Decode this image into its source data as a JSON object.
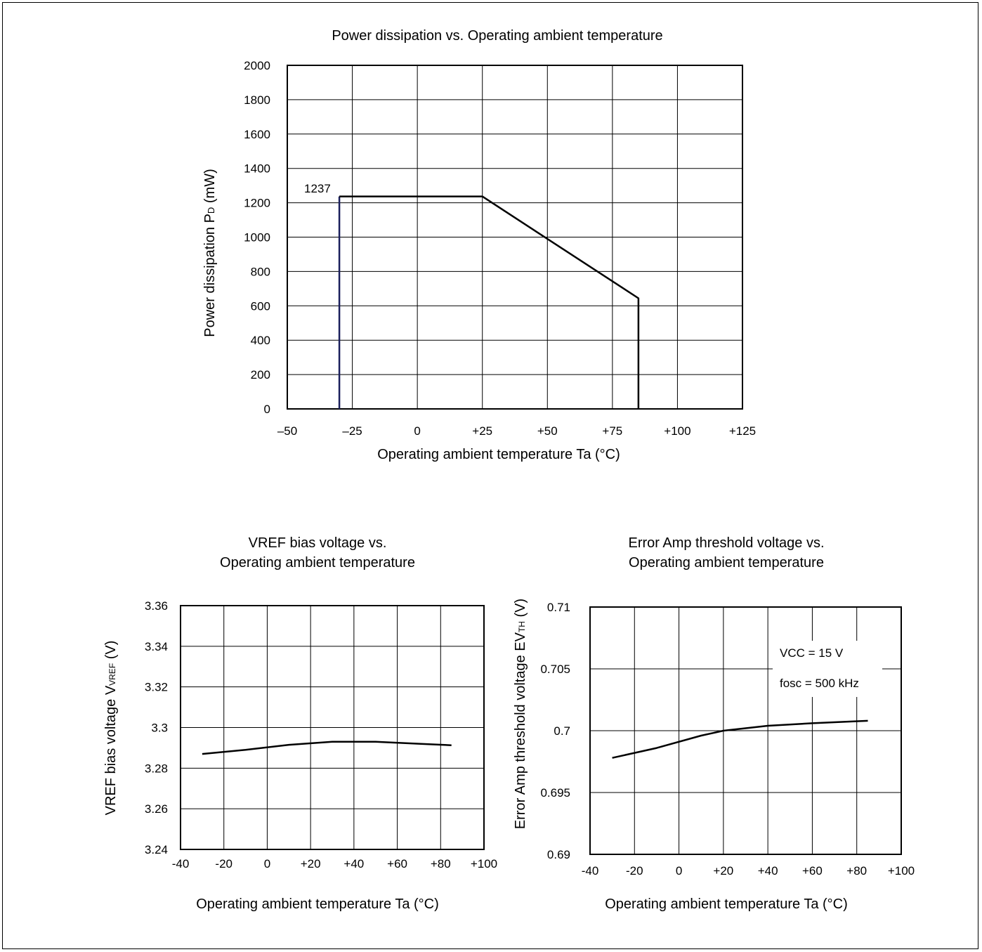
{
  "chart_data": [
    {
      "type": "line",
      "title": "Power dissipation vs. Operating ambient temperature",
      "xlabel": "Operating ambient temperature Ta (°C)",
      "ylabel_main": "Power dissipation P",
      "ylabel_sub": "D",
      "ylabel_tail": " (mW)",
      "xlim": [
        -50,
        125
      ],
      "ylim": [
        0,
        2000
      ],
      "x_ticks": [
        -50,
        -25,
        0,
        25,
        50,
        75,
        100,
        125
      ],
      "x_tick_labels": [
        "–50",
        "–25",
        "0",
        "+25",
        "+50",
        "+75",
        "+100",
        "+125"
      ],
      "y_ticks": [
        0,
        200,
        400,
        600,
        800,
        1000,
        1200,
        1400,
        1600,
        1800,
        2000
      ],
      "y_tick_labels": [
        "0",
        "200",
        "400",
        "600",
        "800",
        "1000",
        "1200",
        "1400",
        "1600",
        "1800",
        "2000"
      ],
      "grid": true,
      "annotations": [
        {
          "text": "1237"
        }
      ],
      "series": [
        {
          "x": [
            -30,
            -30
          ],
          "y": [
            0,
            1237
          ],
          "color": "#1a1f5c"
        },
        {
          "x": [
            -30,
            25,
            85,
            85
          ],
          "y": [
            1237,
            1237,
            644,
            0
          ],
          "color": "#000000"
        }
      ]
    },
    {
      "type": "line",
      "title_lines": [
        "VREF bias voltage vs.",
        "Operating ambient temperature"
      ],
      "xlabel": "Operating ambient temperature Ta (°C)",
      "ylabel_main": "VREF bias voltage V",
      "ylabel_sub": "VREF",
      "ylabel_tail": " (V)",
      "xlim": [
        -40,
        100
      ],
      "ylim": [
        3.24,
        3.36
      ],
      "x_ticks": [
        -40,
        -20,
        0,
        20,
        40,
        60,
        80,
        100
      ],
      "x_tick_labels": [
        "-40",
        "-20",
        "0",
        "+20",
        "+40",
        "+60",
        "+80",
        "+100"
      ],
      "y_ticks": [
        3.24,
        3.26,
        3.28,
        3.3,
        3.32,
        3.34,
        3.36
      ],
      "y_tick_labels": [
        "3.24",
        "3.26",
        "3.28",
        "3.3",
        "3.32",
        "3.34",
        "3.36"
      ],
      "grid": true,
      "series": [
        {
          "x": [
            -30,
            -10,
            10,
            30,
            50,
            70,
            85
          ],
          "y": [
            3.287,
            3.289,
            3.2915,
            3.293,
            3.293,
            3.292,
            3.2913
          ],
          "color": "#000000"
        }
      ]
    },
    {
      "type": "line",
      "title_lines": [
        "Error Amp threshold voltage vs.",
        "Operating ambient temperature"
      ],
      "xlabel": "Operating ambient temperature Ta (°C)",
      "ylabel_main": "Error Amp threshold voltage EV",
      "ylabel_sub": "TH",
      "ylabel_tail": " (V)",
      "xlim": [
        -40,
        100
      ],
      "ylim": [
        0.69,
        0.71
      ],
      "x_ticks": [
        -40,
        -20,
        0,
        20,
        40,
        60,
        80,
        100
      ],
      "x_tick_labels": [
        "-40",
        "-20",
        "0",
        "+20",
        "+40",
        "+60",
        "+80",
        "+100"
      ],
      "y_ticks": [
        0.69,
        0.695,
        0.7,
        0.705,
        0.71
      ],
      "y_tick_labels": [
        "0.69",
        "0.695",
        "0.7",
        "0.705",
        "0.71"
      ],
      "grid": true,
      "annotations": [
        {
          "text": "VCC = 15 V"
        },
        {
          "text": "fosc = 500 kHz"
        }
      ],
      "series": [
        {
          "x": [
            -30,
            -10,
            10,
            20,
            30,
            40,
            60,
            85
          ],
          "y": [
            0.6978,
            0.6986,
            0.6996,
            0.7,
            0.7002,
            0.7004,
            0.7006,
            0.7008
          ],
          "color": "#000000"
        }
      ]
    }
  ]
}
